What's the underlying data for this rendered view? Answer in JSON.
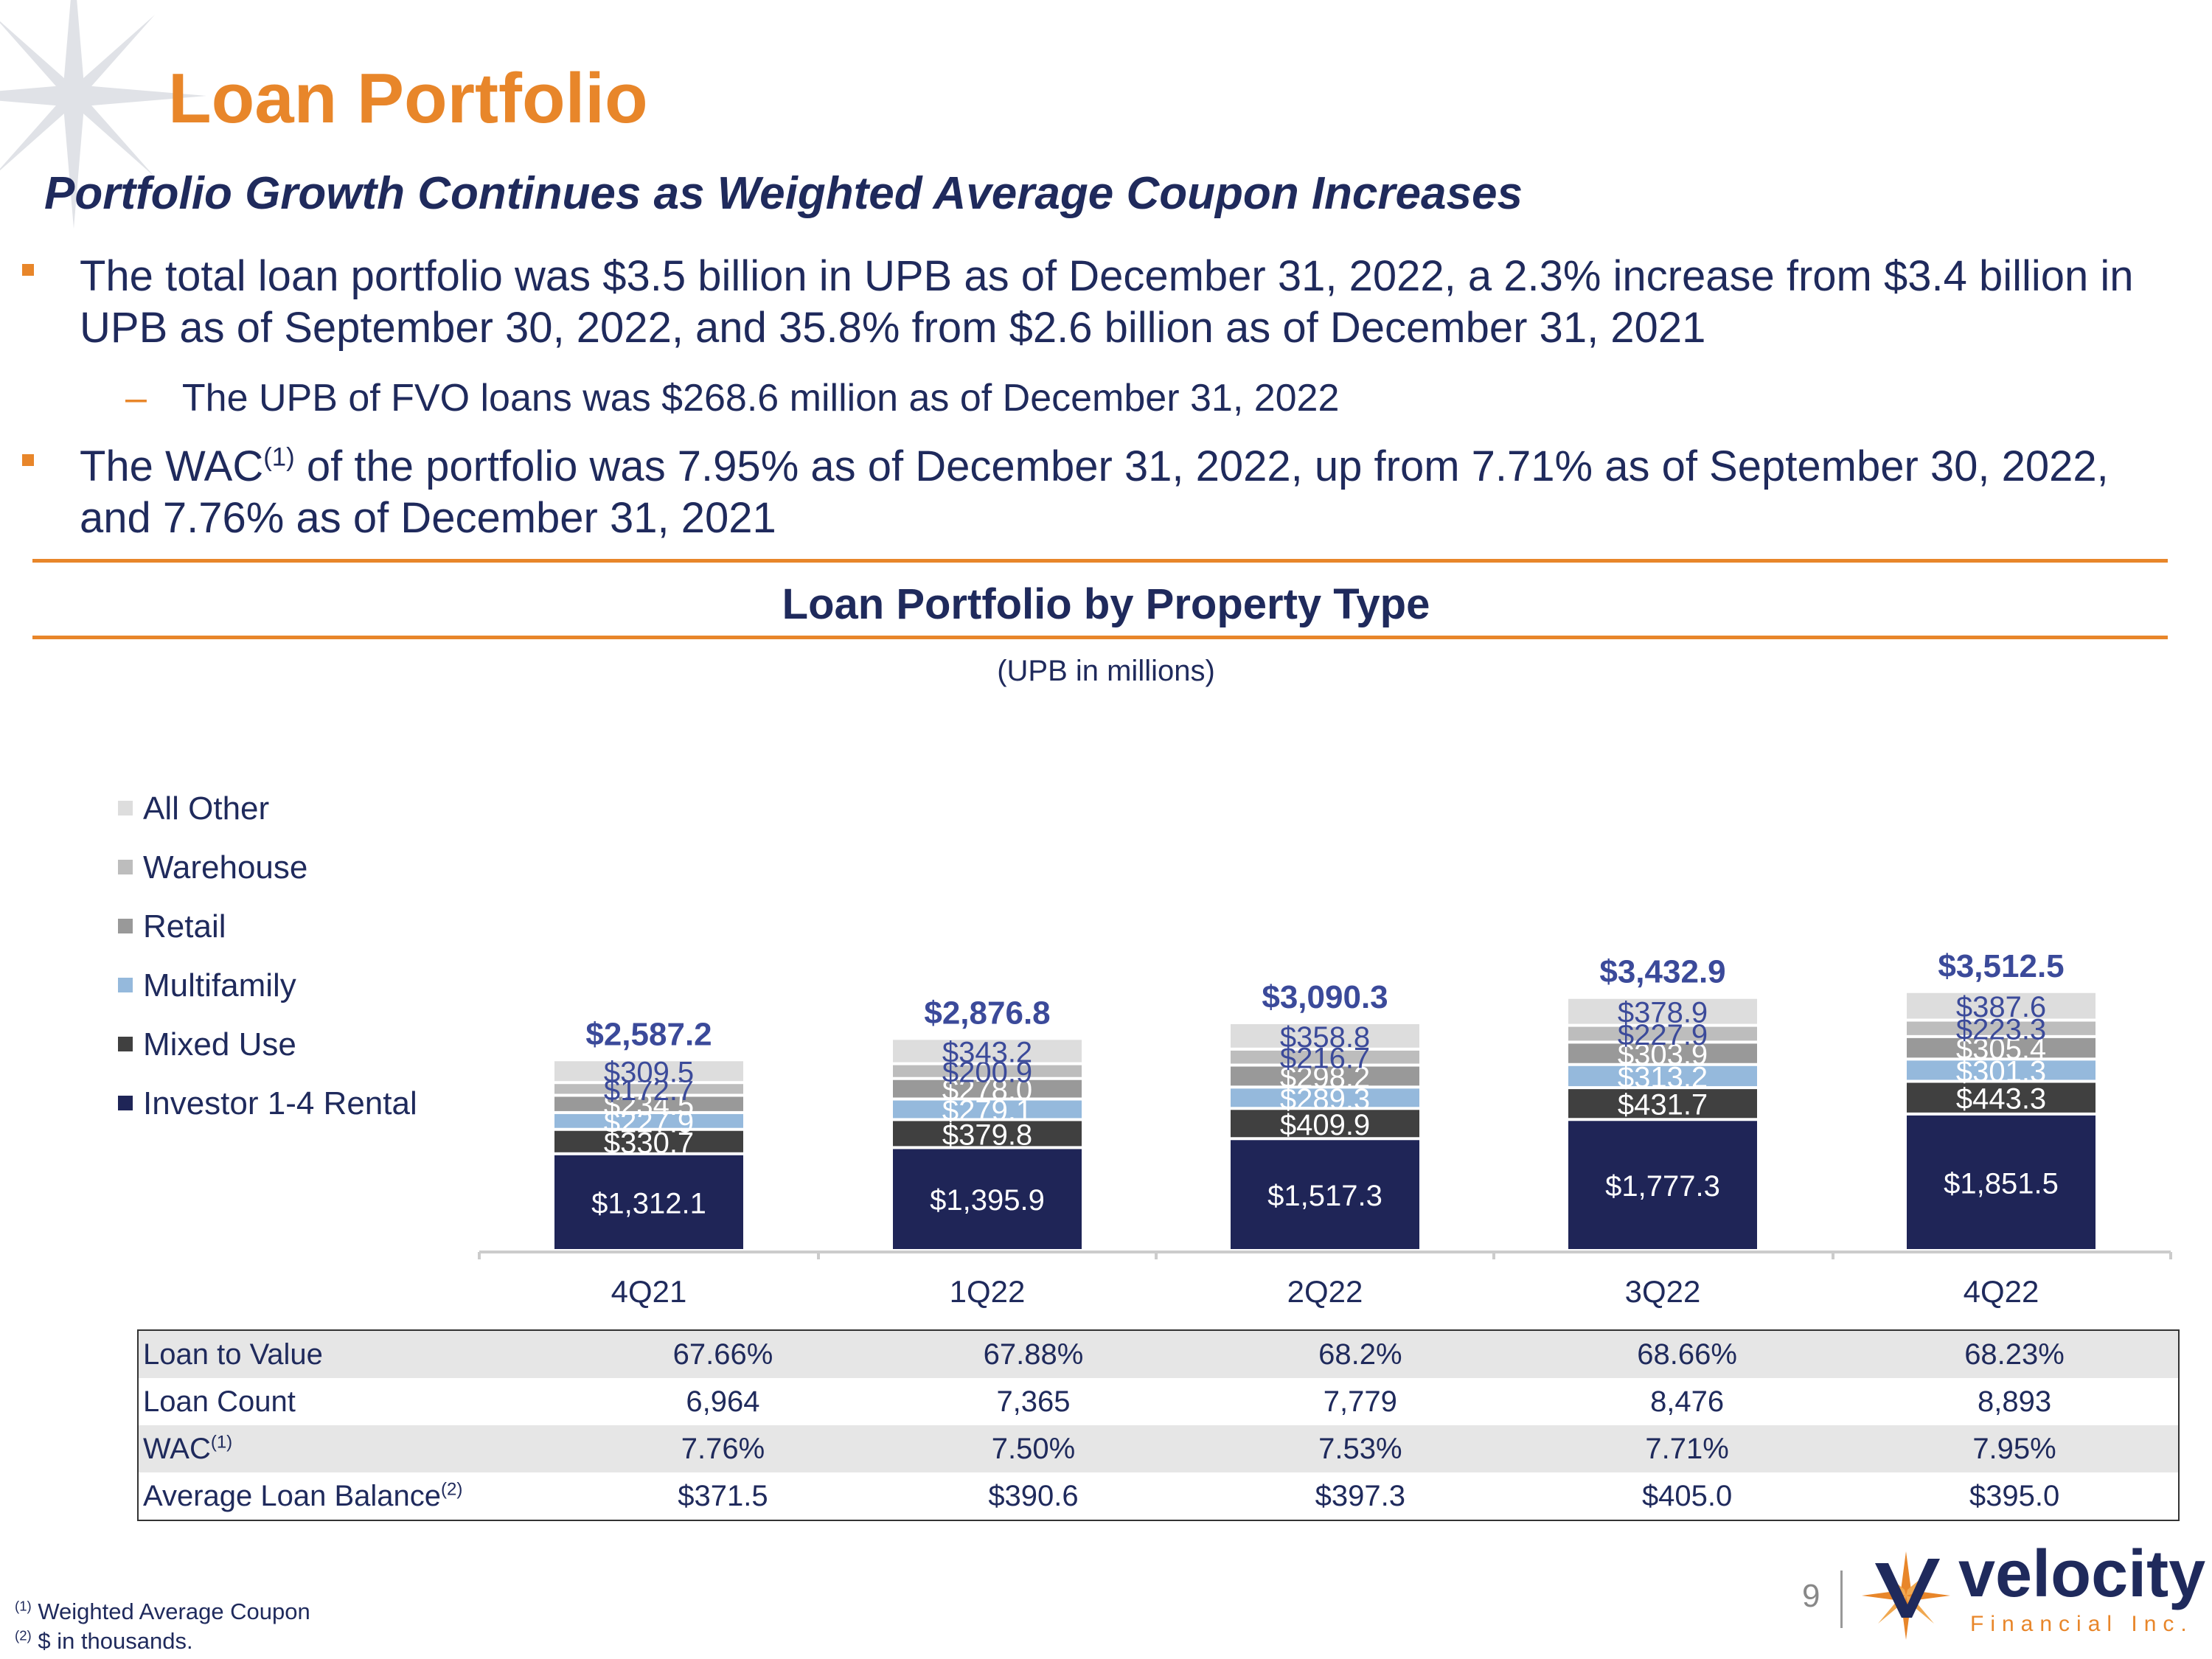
{
  "header": {
    "title": "Loan Portfolio",
    "subtitle": "Portfolio Growth Continues as Weighted Average Coupon Increases"
  },
  "bullets": {
    "b1": "The total loan portfolio was $3.5 billion in UPB as of December 31, 2022, a 2.3% increase from $3.4 billion in UPB as of September 30, 2022, and 35.8% from $2.6 billion as of December 31, 2021",
    "b1_sub": "The UPB of FVO loans was $268.6 million as of December 31, 2022",
    "b2_pre": "The WAC",
    "b2_sup": "(1)",
    "b2_post": " of the portfolio was 7.95% as of December 31, 2022, up from 7.71% as of September 30, 2022, and 7.76% as of December 31, 2021"
  },
  "chart_data": {
    "type": "bar",
    "stacked": true,
    "title": "Loan Portfolio by Property Type",
    "unit_label": "(UPB in millions)",
    "categories": [
      "4Q21",
      "1Q22",
      "2Q22",
      "3Q22",
      "4Q22"
    ],
    "totals": [
      2587.2,
      2876.8,
      3090.3,
      3432.9,
      3512.5
    ],
    "total_labels": [
      "$2,587.2",
      "$2,876.8",
      "$3,090.3",
      "$3,432.9",
      "$3,512.5"
    ],
    "legend_position": "left",
    "series": [
      {
        "name": "Investor 1-4 Rental",
        "color": "#1f2557",
        "label_color": "#ffffff",
        "values": [
          1312.1,
          1395.9,
          1517.3,
          1777.3,
          1851.5
        ],
        "labels": [
          "$1,312.1",
          "$1,395.9",
          "$1,517.3",
          "$1,777.3",
          "$1,851.5"
        ]
      },
      {
        "name": "Mixed Use",
        "color": "#404040",
        "label_color": "#ffffff",
        "values": [
          330.7,
          379.8,
          409.9,
          431.7,
          443.3
        ],
        "labels": [
          "$330.7",
          "$379.8",
          "$409.9",
          "$431.7",
          "$443.3"
        ]
      },
      {
        "name": "Multifamily",
        "color": "#95b9dc",
        "label_color": "#ffffff",
        "values": [
          227.9,
          279.1,
          289.3,
          313.2,
          301.3
        ],
        "labels": [
          "$227.9",
          "$279.1",
          "$289.3",
          "$313.2",
          "$301.3"
        ]
      },
      {
        "name": "Retail",
        "color": "#999999",
        "label_color": "#ffffff",
        "values": [
          234.5,
          278.0,
          298.2,
          303.9,
          305.4
        ],
        "labels": [
          "$234.5",
          "$278.0",
          "$298.2",
          "$303.9",
          "$305.4"
        ]
      },
      {
        "name": "Warehouse",
        "color": "#bdbdbd",
        "label_color": "#3b4a9a",
        "values": [
          172.7,
          200.9,
          216.7,
          227.9,
          223.3
        ],
        "labels": [
          "$172.7",
          "$200.9",
          "$216.7",
          "$227.9",
          "$223.3"
        ]
      },
      {
        "name": "All Other",
        "color": "#dddddd",
        "label_color": "#3b4a9a",
        "values": [
          309.5,
          343.2,
          358.8,
          378.9,
          387.6
        ],
        "labels": [
          "$309.5",
          "$343.2",
          "$358.8",
          "$378.9",
          "$387.6"
        ]
      }
    ],
    "legend": [
      "All Other",
      "Warehouse",
      "Retail",
      "Multifamily",
      "Mixed Use",
      "Investor 1-4 Rental"
    ],
    "legend_colors": [
      "#dddddd",
      "#bdbdbd",
      "#999999",
      "#95b9dc",
      "#404040",
      "#1f2557"
    ],
    "colors": {
      "total_label": "#3b4a9a",
      "axis": "#cccccc"
    }
  },
  "table": {
    "rows": [
      {
        "label": "Loan to Value",
        "sup": "",
        "values": [
          "67.66%",
          "67.88%",
          "68.2%",
          "68.66%",
          "68.23%"
        ]
      },
      {
        "label": "Loan Count",
        "sup": "",
        "values": [
          "6,964",
          "7,365",
          "7,779",
          "8,476",
          "8,893"
        ]
      },
      {
        "label": "WAC",
        "sup": "(1)",
        "values": [
          "7.76%",
          "7.50%",
          "7.53%",
          "7.71%",
          "7.95%"
        ]
      },
      {
        "label": "Average Loan Balance",
        "sup": "(2)",
        "values": [
          "$371.5",
          "$390.6",
          "$397.3",
          "$405.0",
          "$395.0"
        ]
      }
    ]
  },
  "footnotes": {
    "f1_mark": "(1)",
    "f1_text": " Weighted Average Coupon",
    "f2_mark": "(2)",
    "f2_text": " $ in thousands."
  },
  "footer": {
    "page_number": "9",
    "logo_word": "velocity",
    "logo_tagline": "Financial Inc."
  },
  "colors": {
    "accent": "#e8862a",
    "brand": "#1f2a5c"
  }
}
